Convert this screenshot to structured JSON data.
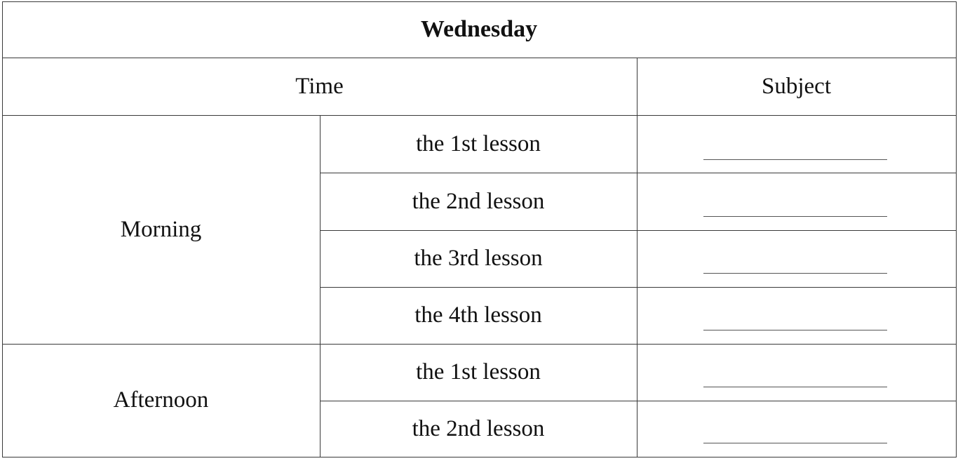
{
  "table": {
    "title": "Wednesday",
    "headers": {
      "time": "Time",
      "subject": "Subject"
    },
    "periods": [
      {
        "label": "Morning",
        "lessons": [
          "the 1st lesson",
          "the 2nd lesson",
          "the 3rd lesson",
          "the 4th lesson"
        ]
      },
      {
        "label": "Afternoon",
        "lessons": [
          "the 1st lesson",
          "the 2nd lesson"
        ]
      }
    ],
    "subjects": [
      "",
      "",
      "",
      "",
      "",
      ""
    ]
  }
}
